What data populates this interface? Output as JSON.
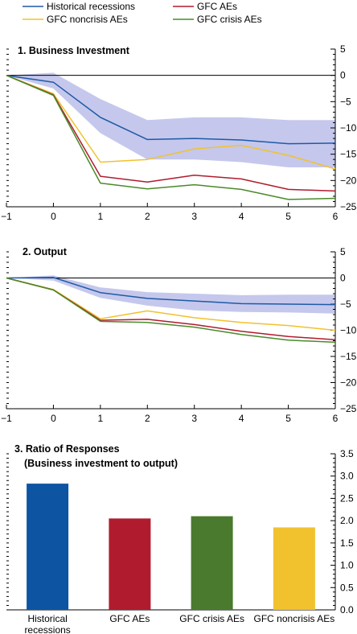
{
  "legend": [
    {
      "name": "Historical recessions",
      "color": "#1f5aa6"
    },
    {
      "name": "GFC AEs",
      "color": "#b01c2e"
    },
    {
      "name": "GFC noncrisis AEs",
      "color": "#f2c12e"
    },
    {
      "name": "GFC crisis AEs",
      "color": "#4a8a2a"
    }
  ],
  "band_color": "#c5c8ec",
  "chart_data": [
    {
      "type": "line",
      "title": "1. Business Investment",
      "x": [
        -1,
        0,
        1,
        2,
        3,
        4,
        5,
        6
      ],
      "ylim": [
        -25,
        5
      ],
      "yticks": [
        5,
        0,
        -5,
        -10,
        -15,
        -20,
        -25
      ],
      "band": {
        "upper": [
          0,
          0.5,
          -4.5,
          -8.5,
          -8,
          -8,
          -8.5,
          -8.5
        ],
        "lower": [
          0,
          -2.5,
          -11,
          -16,
          -16,
          -16.5,
          -17.5,
          -17.5
        ]
      },
      "series": [
        {
          "name": "Historical recessions",
          "color": "#1f5aa6",
          "values": [
            0,
            -1.3,
            -8,
            -12.2,
            -12,
            -12.3,
            -13,
            -12.9
          ]
        },
        {
          "name": "GFC noncrisis AEs",
          "color": "#f2c12e",
          "values": [
            0,
            -3.5,
            -16.5,
            -16,
            -14,
            -13.3,
            -15.2,
            -17.8
          ]
        },
        {
          "name": "GFC AEs",
          "color": "#b01c2e",
          "values": [
            0,
            -3.7,
            -19.2,
            -20.3,
            -19,
            -19.7,
            -21.7,
            -22
          ]
        },
        {
          "name": "GFC crisis AEs",
          "color": "#4a8a2a",
          "values": [
            0,
            -3.8,
            -20.5,
            -21.6,
            -20.8,
            -21.7,
            -23.6,
            -23.4
          ]
        }
      ]
    },
    {
      "type": "line",
      "title": "2. Output",
      "x": [
        -1,
        0,
        1,
        2,
        3,
        4,
        5,
        6
      ],
      "ylim": [
        -25,
        5
      ],
      "yticks": [
        5,
        0,
        -5,
        -10,
        -15,
        -20,
        -25
      ],
      "band": {
        "upper": [
          0,
          0.5,
          -1.8,
          -2.7,
          -3,
          -3.3,
          -3.2,
          -3.2
        ],
        "lower": [
          0,
          -0.5,
          -3.8,
          -5.3,
          -6.2,
          -6.5,
          -6.6,
          -6.8
        ]
      },
      "series": [
        {
          "name": "Historical recessions",
          "color": "#1f5aa6",
          "values": [
            0,
            0.1,
            -2.8,
            -3.9,
            -4.4,
            -4.9,
            -5,
            -5.1
          ]
        },
        {
          "name": "GFC noncrisis AEs",
          "color": "#f2c12e",
          "values": [
            0,
            -2.2,
            -7.8,
            -6.3,
            -7.6,
            -8.5,
            -9.1,
            -10
          ]
        },
        {
          "name": "GFC AEs",
          "color": "#b01c2e",
          "values": [
            0,
            -2.3,
            -8.1,
            -7.9,
            -8.9,
            -10.2,
            -11.2,
            -11.8
          ]
        },
        {
          "name": "GFC crisis AEs",
          "color": "#4a8a2a",
          "values": [
            0,
            -2.3,
            -8.3,
            -8.5,
            -9.4,
            -10.8,
            -11.9,
            -12.3
          ]
        }
      ]
    },
    {
      "type": "bar",
      "title": "3. Ratio of Responses",
      "subtitle": "(Business investment to output)",
      "ylim": [
        0,
        3.5
      ],
      "yticks": [
        "3.5",
        "3.0",
        "2.5",
        "2.0",
        "1.5",
        "1.0",
        "0.5",
        "0.0"
      ],
      "categories": [
        {
          "line1": "Historical",
          "line2": "recessions",
          "value": 2.83,
          "color": "#0d55a3"
        },
        {
          "line1": "GFC AEs",
          "line2": "",
          "value": 2.05,
          "color": "#b01c2e"
        },
        {
          "line1": "GFC crisis AEs",
          "line2": "",
          "value": 2.1,
          "color": "#4a7a2e"
        },
        {
          "line1": "GFC noncrisis AEs",
          "line2": "",
          "value": 1.85,
          "color": "#f2c12e"
        }
      ]
    }
  ]
}
